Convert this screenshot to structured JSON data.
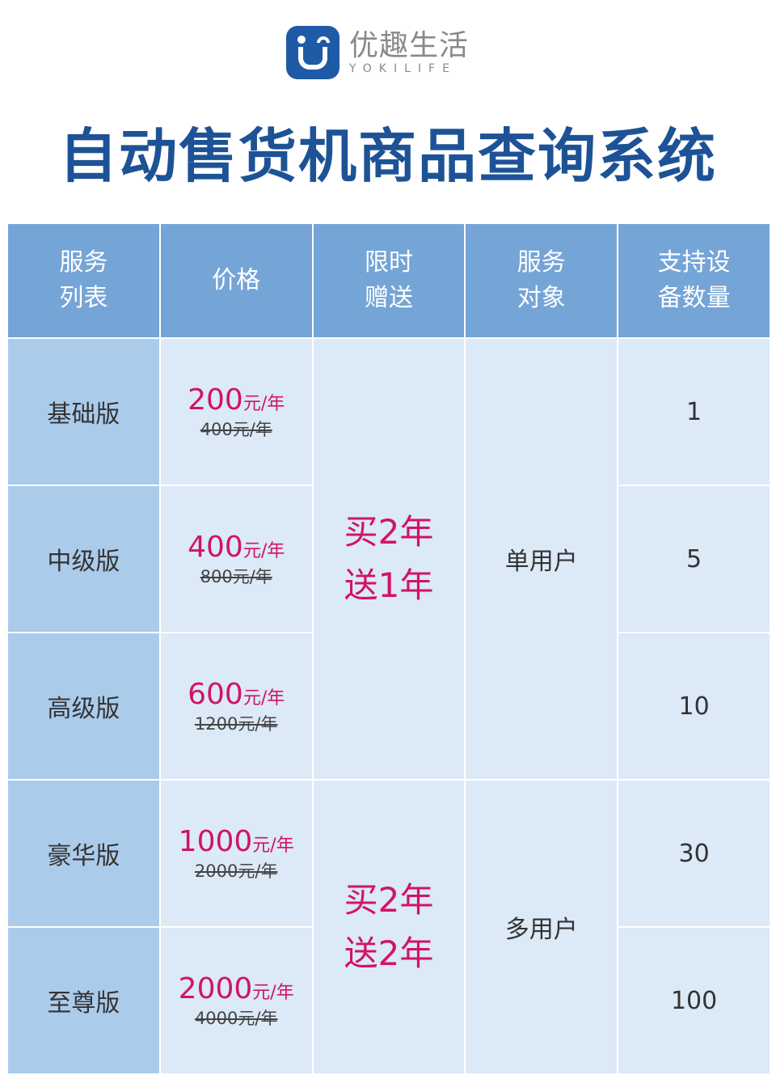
{
  "logo": {
    "cn": "优趣生活",
    "en": "YOKILIFE"
  },
  "title": "自动售货机商品查询系统",
  "colors": {
    "title": "#1d5396",
    "header": "#75a4d7",
    "name_col": "#abcbeb",
    "cell": "#dce9f7",
    "price": "#d0155f"
  },
  "headers": [
    "服务\n列表",
    "价格",
    "限时\n赠送",
    "服务\n对象",
    "支持设\n备数量"
  ],
  "unit": "元/年",
  "rows": [
    {
      "name": "基础版",
      "price": "200",
      "old": "400元/年",
      "devices": "1"
    },
    {
      "name": "中级版",
      "price": "400",
      "old": "800元/年",
      "devices": "5"
    },
    {
      "name": "高级版",
      "price": "600",
      "old": "1200元/年",
      "devices": "10"
    },
    {
      "name": "豪华版",
      "price": "1000",
      "old": "2000元/年",
      "devices": "30"
    },
    {
      "name": "至尊版",
      "price": "2000",
      "old": "4000元/年",
      "devices": "100"
    }
  ],
  "groups": [
    {
      "gift_line1": "买2年",
      "gift_line2": "送1年",
      "target": "单用户"
    },
    {
      "gift_line1": "买2年",
      "gift_line2": "送2年",
      "target": "多用户"
    }
  ]
}
